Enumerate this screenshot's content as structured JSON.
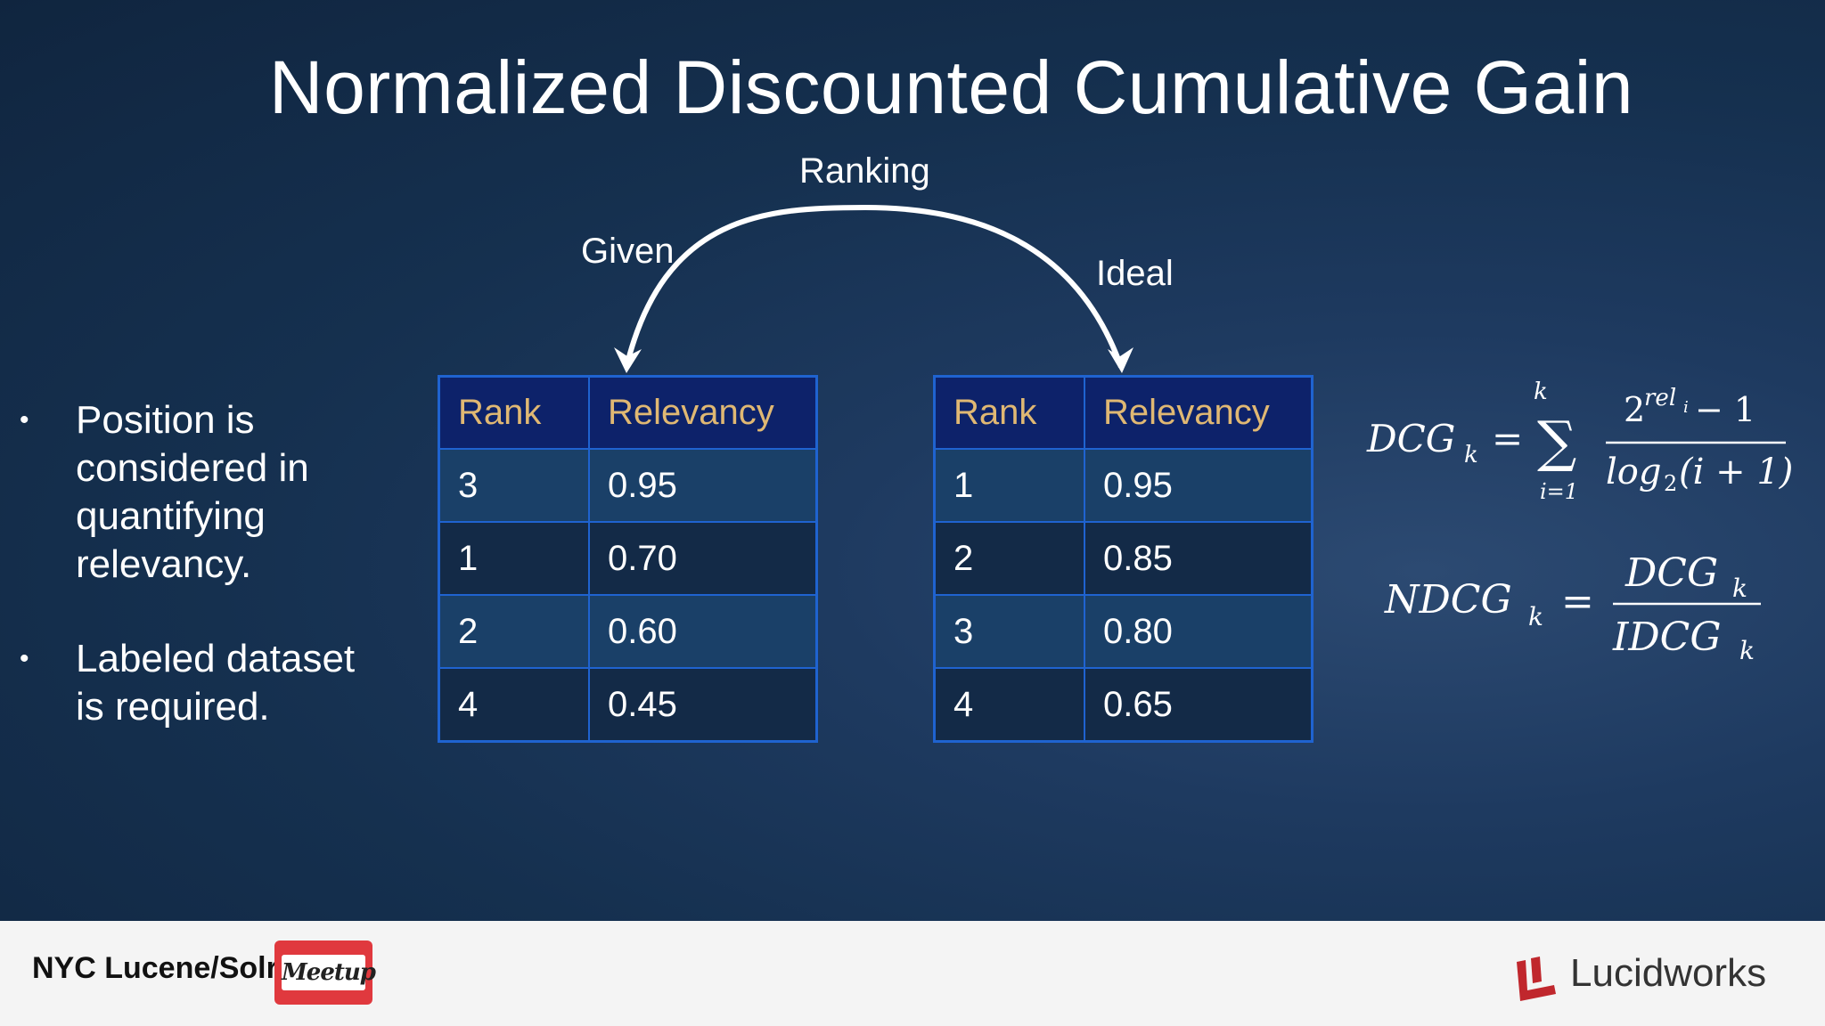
{
  "slide": {
    "title": "Normalized Discounted Cumulative Gain",
    "arc_labels": {
      "ranking": "Ranking",
      "given": "Given",
      "ideal": "Ideal"
    },
    "bullets": [
      "Position is considered in quantifying relevancy.",
      "Labeled dataset is required."
    ],
    "bullet_glyph": "•",
    "given_table": {
      "headers": [
        "Rank",
        "Relevancy"
      ],
      "rows": [
        [
          "3",
          "0.95"
        ],
        [
          "1",
          "0.70"
        ],
        [
          "2",
          "0.60"
        ],
        [
          "4",
          "0.45"
        ]
      ]
    },
    "ideal_table": {
      "headers": [
        "Rank",
        "Relevancy"
      ],
      "rows": [
        [
          "1",
          "0.95"
        ],
        [
          "2",
          "0.85"
        ],
        [
          "3",
          "0.80"
        ],
        [
          "4",
          "0.65"
        ]
      ]
    },
    "formulas": {
      "dcg": {
        "lhs": "DCG",
        "lhs_sub": "k",
        "equals": "=",
        "sum_symbol": "∑",
        "sum_upper": "k",
        "sum_lower": "i=1",
        "numerator_base": "2",
        "numerator_exp": "rel",
        "numerator_exp_sub": "i",
        "numerator_rest": " − 1",
        "denominator_func": "log",
        "denominator_sub": "2",
        "denominator_arg": "(i + 1)"
      },
      "ndcg": {
        "lhs": "NDCG",
        "lhs_sub": "k",
        "equals": "=",
        "numerator": "DCG",
        "numerator_sub": "k",
        "denominator": "IDCG",
        "denominator_sub": "k"
      }
    }
  },
  "footer": {
    "meetup_name": "NYC Lucene/Solr",
    "meetup_logo_text": "Meetup",
    "company_name": "Lucidworks"
  },
  "colors": {
    "background": "#15304f",
    "table_border": "#1f63d0",
    "table_header_bg": "#0d226a",
    "table_header_text": "#e0b873",
    "row_odd": "#1a4068",
    "row_even": "#132a47",
    "meetup_red": "#e0393e",
    "lucidworks_red": "#c0272d"
  }
}
